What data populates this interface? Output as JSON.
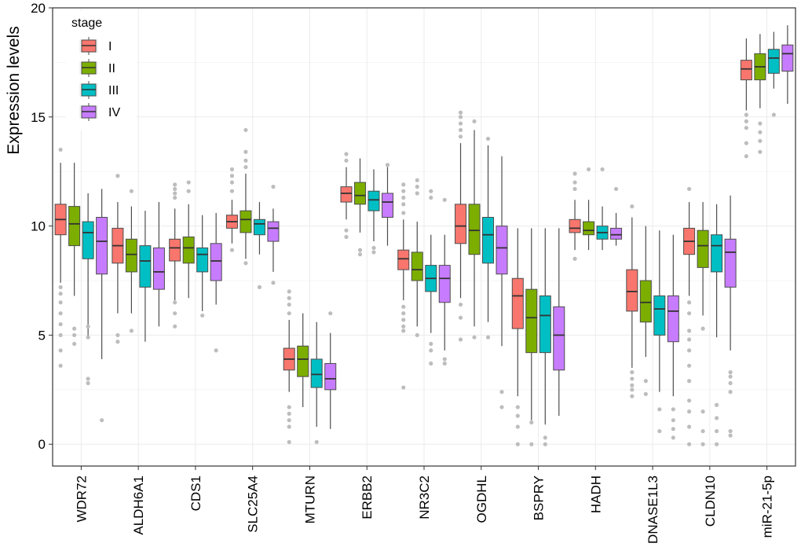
{
  "chart_data": {
    "type": "boxplot",
    "ylabel": "Expression levels",
    "xlabel": "",
    "ylim": [
      -1,
      20
    ],
    "yticks": [
      0,
      5,
      10,
      15,
      20
    ],
    "grid": true,
    "legend": {
      "title": "stage",
      "position": "top-left",
      "entries": [
        {
          "name": "I",
          "color": "#F8766D"
        },
        {
          "name": "II",
          "color": "#7CAE00"
        },
        {
          "name": "III",
          "color": "#00BFC4"
        },
        {
          "name": "IV",
          "color": "#C77CFF"
        }
      ]
    },
    "categories": [
      "WDR72",
      "ALDH6A1",
      "CDS1",
      "SLC25A4",
      "MTURN",
      "ERBB2",
      "NR3C2",
      "OGDHL",
      "BSPRY",
      "HADH",
      "DNASE1L3",
      "CLDN10",
      "miR-21-5p"
    ],
    "series": [
      {
        "name": "I",
        "boxes": [
          {
            "whisker_low": 7.4,
            "q1": 9.6,
            "median": 10.3,
            "q3": 11.0,
            "whisker_high": 12.9,
            "outliers": [
              13.5,
              7.2,
              6.9,
              6.5,
              6.0,
              5.5,
              5.0,
              4.3,
              3.6
            ]
          },
          {
            "whisker_low": 6.0,
            "q1": 8.3,
            "median": 9.1,
            "q3": 9.9,
            "whisker_high": 11.1,
            "outliers": [
              12.3,
              5.0,
              4.7
            ]
          },
          {
            "whisker_low": 6.6,
            "q1": 8.4,
            "median": 9.0,
            "q3": 9.4,
            "whisker_high": 10.8,
            "outliers": [
              11.9,
              11.7,
              11.5,
              11.3,
              6.5,
              6.0,
              5.4
            ]
          },
          {
            "whisker_low": 9.2,
            "q1": 9.9,
            "median": 10.2,
            "q3": 10.5,
            "whisker_high": 11.2,
            "outliers": [
              12.6,
              12.3,
              12.0,
              11.6,
              8.9
            ]
          },
          {
            "whisker_low": 2.4,
            "q1": 3.4,
            "median": 3.9,
            "q3": 4.4,
            "whisker_high": 5.7,
            "outliers": [
              7.0,
              6.7,
              6.4,
              6.0,
              1.7,
              1.4,
              1.1,
              0.8,
              0.1
            ]
          },
          {
            "whisker_low": 10.3,
            "q1": 11.1,
            "median": 11.5,
            "q3": 11.8,
            "whisker_high": 12.7,
            "outliers": [
              13.3,
              13.0,
              9.8,
              9.5
            ]
          },
          {
            "whisker_low": 6.6,
            "q1": 8.0,
            "median": 8.5,
            "q3": 8.9,
            "whisker_high": 10.3,
            "outliers": [
              11.9,
              11.6,
              11.3,
              11.0,
              10.6,
              6.3,
              6.0,
              5.7,
              5.4,
              5.2,
              2.6
            ]
          },
          {
            "whisker_low": 6.7,
            "q1": 9.2,
            "median": 10.0,
            "q3": 11.0,
            "whisker_high": 13.8,
            "outliers": [
              15.2,
              15.0,
              14.7,
              14.4,
              14.1,
              6.4,
              5.8,
              4.8
            ]
          },
          {
            "whisker_low": 2.2,
            "q1": 5.3,
            "median": 6.8,
            "q3": 7.6,
            "whisker_high": 9.9,
            "outliers": [
              1.7,
              1.3,
              0.8,
              0.0
            ]
          },
          {
            "whisker_low": 8.9,
            "q1": 9.7,
            "median": 9.9,
            "q3": 10.3,
            "whisker_high": 11.2,
            "outliers": [
              12.4,
              12.0,
              11.7,
              8.5
            ]
          },
          {
            "whisker_low": 3.5,
            "q1": 6.1,
            "median": 7.0,
            "q3": 8.0,
            "whisker_high": 10.4,
            "outliers": [
              10.9,
              3.3,
              3.0,
              2.7,
              2.5,
              2.2
            ]
          },
          {
            "whisker_low": 6.8,
            "q1": 8.7,
            "median": 9.3,
            "q3": 9.9,
            "whisker_high": 11.1,
            "outliers": [
              11.7,
              6.5,
              6.0,
              5.2,
              4.8,
              4.3,
              3.6,
              2.9,
              2.0,
              1.5,
              0.8,
              0.0
            ]
          },
          {
            "whisker_low": 15.3,
            "q1": 16.7,
            "median": 17.2,
            "q3": 17.6,
            "whisker_high": 18.6,
            "outliers": [
              15.1,
              14.8,
              14.5,
              13.8,
              13.2
            ]
          }
        ]
      },
      {
        "name": "II",
        "boxes": [
          {
            "whisker_low": 6.8,
            "q1": 9.1,
            "median": 10.1,
            "q3": 10.9,
            "whisker_high": 12.9,
            "outliers": [
              5.3,
              5.0,
              4.6
            ]
          },
          {
            "whisker_low": 6.0,
            "q1": 7.9,
            "median": 8.7,
            "q3": 9.4,
            "whisker_high": 10.9,
            "outliers": [
              11.6,
              5.2
            ]
          },
          {
            "whisker_low": 6.7,
            "q1": 8.3,
            "median": 9.0,
            "q3": 9.5,
            "whisker_high": 11.0,
            "outliers": [
              12.0,
              11.6
            ]
          },
          {
            "whisker_low": 8.5,
            "q1": 9.7,
            "median": 10.3,
            "q3": 10.7,
            "whisker_high": 12.4,
            "outliers": [
              14.4,
              13.4,
              13.0,
              12.7,
              8.3
            ]
          },
          {
            "whisker_low": 1.7,
            "q1": 3.1,
            "median": 3.9,
            "q3": 4.5,
            "whisker_high": 6.0,
            "outliers": []
          },
          {
            "whisker_low": 9.7,
            "q1": 11.0,
            "median": 11.4,
            "q3": 12.0,
            "whisker_high": 13.1,
            "outliers": [
              8.9,
              8.7
            ]
          },
          {
            "whisker_low": 5.4,
            "q1": 7.5,
            "median": 8.0,
            "q3": 8.8,
            "whisker_high": 10.2,
            "outliers": [
              12.1,
              11.8,
              11.5,
              5.0
            ]
          },
          {
            "whisker_low": 5.4,
            "q1": 8.7,
            "median": 9.8,
            "q3": 11.0,
            "whisker_high": 14.4,
            "outliers": [
              14.8,
              4.9
            ]
          },
          {
            "whisker_low": 1.1,
            "q1": 4.2,
            "median": 5.8,
            "q3": 7.1,
            "whisker_high": 9.9,
            "outliers": [
              1.0,
              0.0
            ]
          },
          {
            "whisker_low": 8.9,
            "q1": 9.6,
            "median": 9.8,
            "q3": 10.2,
            "whisker_high": 11.2,
            "outliers": [
              12.6
            ]
          },
          {
            "whisker_low": 4.0,
            "q1": 5.6,
            "median": 6.5,
            "q3": 7.5,
            "whisker_high": 10.0,
            "outliers": [
              2.9,
              2.3
            ]
          },
          {
            "whisker_low": 5.9,
            "q1": 8.1,
            "median": 9.1,
            "q3": 9.8,
            "whisker_high": 11.1,
            "outliers": [
              5.3,
              1.5,
              0.6,
              0.0
            ]
          },
          {
            "whisker_low": 15.4,
            "q1": 16.7,
            "median": 17.3,
            "q3": 17.9,
            "whisker_high": 18.8,
            "outliers": [
              14.7,
              14.3,
              13.9,
              13.4
            ]
          }
        ]
      },
      {
        "name": "III",
        "boxes": [
          {
            "whisker_low": 4.9,
            "q1": 8.5,
            "median": 9.7,
            "q3": 10.2,
            "whisker_high": 11.5,
            "outliers": [
              5.4,
              4.9,
              3.0,
              2.8
            ]
          },
          {
            "whisker_low": 4.7,
            "q1": 7.2,
            "median": 8.4,
            "q3": 9.1,
            "whisker_high": 10.7,
            "outliers": []
          },
          {
            "whisker_low": 6.1,
            "q1": 7.9,
            "median": 8.7,
            "q3": 9.0,
            "whisker_high": 10.5,
            "outliers": [
              5.9
            ]
          },
          {
            "whisker_low": 8.7,
            "q1": 9.6,
            "median": 10.1,
            "q3": 10.3,
            "whisker_high": 11.1,
            "outliers": [
              7.2
            ]
          },
          {
            "whisker_low": 0.8,
            "q1": 2.6,
            "median": 3.2,
            "q3": 3.9,
            "whisker_high": 5.6,
            "outliers": [
              0.1
            ]
          },
          {
            "whisker_low": 9.3,
            "q1": 10.7,
            "median": 11.2,
            "q3": 11.6,
            "whisker_high": 12.6,
            "outliers": [
              9.0,
              8.8
            ]
          },
          {
            "whisker_low": 5.1,
            "q1": 7.0,
            "median": 7.6,
            "q3": 8.2,
            "whisker_high": 9.6,
            "outliers": [
              11.6,
              11.3,
              4.6,
              4.3,
              3.7
            ]
          },
          {
            "whisker_low": 5.6,
            "q1": 8.3,
            "median": 9.6,
            "q3": 10.4,
            "whisker_high": 13.7,
            "outliers": [
              14.0,
              4.9
            ]
          },
          {
            "whisker_low": 0.9,
            "q1": 4.2,
            "median": 5.9,
            "q3": 6.8,
            "whisker_high": 9.9,
            "outliers": [
              0.3,
              0.0
            ]
          },
          {
            "whisker_low": 8.9,
            "q1": 9.4,
            "median": 9.7,
            "q3": 10.0,
            "whisker_high": 10.9,
            "outliers": [
              12.6
            ]
          },
          {
            "whisker_low": 2.4,
            "q1": 5.0,
            "median": 6.2,
            "q3": 6.8,
            "whisker_high": 9.8,
            "outliers": [
              1.6,
              0.6
            ]
          },
          {
            "whisker_low": 4.9,
            "q1": 7.9,
            "median": 9.1,
            "q3": 9.6,
            "whisker_high": 11.0,
            "outliers": [
              1.8,
              1.2,
              0.6,
              0.0
            ]
          },
          {
            "whisker_low": 16.3,
            "q1": 17.0,
            "median": 17.7,
            "q3": 18.1,
            "whisker_high": 18.9,
            "outliers": [
              15.1
            ]
          }
        ]
      },
      {
        "name": "IV",
        "boxes": [
          {
            "whisker_low": 3.9,
            "q1": 7.8,
            "median": 9.3,
            "q3": 10.4,
            "whisker_high": 11.7,
            "outliers": [
              1.1
            ]
          },
          {
            "whisker_low": 5.4,
            "q1": 7.1,
            "median": 7.9,
            "q3": 9.0,
            "whisker_high": 11.1,
            "outliers": []
          },
          {
            "whisker_low": 6.4,
            "q1": 7.5,
            "median": 8.4,
            "q3": 9.2,
            "whisker_high": 10.6,
            "outliers": [
              4.3
            ]
          },
          {
            "whisker_low": 7.9,
            "q1": 9.3,
            "median": 9.9,
            "q3": 10.2,
            "whisker_high": 10.8,
            "outliers": [
              11.8,
              7.4
            ]
          },
          {
            "whisker_low": 0.7,
            "q1": 2.5,
            "median": 3.0,
            "q3": 3.7,
            "whisker_high": 5.1,
            "outliers": [
              6.0
            ]
          },
          {
            "whisker_low": 9.1,
            "q1": 10.4,
            "median": 11.1,
            "q3": 11.5,
            "whisker_high": 12.7,
            "outliers": [
              12.8
            ]
          },
          {
            "whisker_low": 4.3,
            "q1": 6.5,
            "median": 7.6,
            "q3": 8.2,
            "whisker_high": 9.6,
            "outliers": [
              11.2,
              3.9,
              3.7
            ]
          },
          {
            "whisker_low": 4.5,
            "q1": 7.8,
            "median": 9.0,
            "q3": 10.0,
            "whisker_high": 13.2,
            "outliers": [
              2.4,
              1.7
            ]
          },
          {
            "whisker_low": 1.3,
            "q1": 3.4,
            "median": 5.0,
            "q3": 6.3,
            "whisker_high": 9.9,
            "outliers": []
          },
          {
            "whisker_low": 9.1,
            "q1": 9.4,
            "median": 9.6,
            "q3": 9.9,
            "whisker_high": 10.6,
            "outliers": [
              11.7
            ]
          },
          {
            "whisker_low": 2.2,
            "q1": 4.7,
            "median": 6.1,
            "q3": 6.8,
            "whisker_high": 9.6,
            "outliers": [
              1.6,
              1.1,
              0.7,
              0.3
            ]
          },
          {
            "whisker_low": 4.3,
            "q1": 7.2,
            "median": 8.8,
            "q3": 9.4,
            "whisker_high": 11.4,
            "outliers": [
              3.3,
              3.1,
              2.8,
              2.4,
              0.6,
              0.4
            ]
          },
          {
            "whisker_low": 15.6,
            "q1": 17.1,
            "median": 17.9,
            "q3": 18.3,
            "whisker_high": 19.2,
            "outliers": []
          }
        ]
      }
    ]
  }
}
